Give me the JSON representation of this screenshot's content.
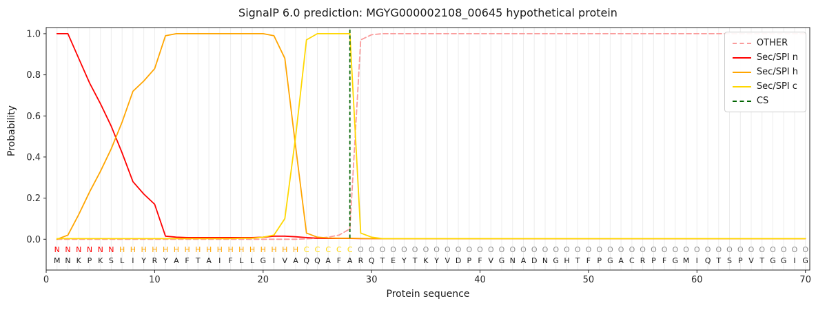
{
  "chart_data": {
    "type": "line",
    "title": "SignalP 6.0 prediction: MGYG000002108_00645 hypothetical protein",
    "xlabel": "Protein sequence",
    "ylabel": "Probability",
    "xlim": [
      0,
      70.4
    ],
    "ylim": [
      -0.15,
      1.03
    ],
    "xticks": [
      0,
      10,
      20,
      30,
      40,
      50,
      60,
      70
    ],
    "yticks": [
      0.0,
      0.2,
      0.4,
      0.6,
      0.8,
      1.0
    ],
    "grid": "vertical line at each residue position",
    "legend_position": "upper right",
    "x_start": 1,
    "sequence": "MNKPKSLIYRYAFTAIFLLGIVAQQAFARQTEYTKYVDPFVGNADNGHTFPGACRPFGMIQTSPVTGGIG",
    "region_labels": "NNNNNNHHHHHHHHHHHHHHHHHCCCCCOOOOOOOOOOOOOOOOOOOOOOOOOOOOOOOOOOOOOOOOOO",
    "cs_position": 28,
    "region_colors": {
      "N": "#ff0000",
      "H": "#ffa500",
      "C": "#ffd700",
      "O": "#8a8a8a"
    },
    "colors": {
      "grid": "#ececec",
      "frame": "#262626",
      "sequence_text": "#1a1a1a"
    },
    "series": [
      {
        "name": "OTHER",
        "color": "#fa9b9b",
        "dash": true,
        "values": [
          0,
          0,
          0,
          0,
          0,
          0,
          0,
          0,
          0,
          0,
          0,
          0,
          0,
          0,
          0,
          0,
          0,
          0,
          0,
          0,
          0,
          0,
          0,
          0.002,
          0.005,
          0.01,
          0.02,
          0.05,
          0.97,
          0.995,
          1,
          1,
          1,
          1,
          1,
          1,
          1,
          1,
          1,
          1,
          1,
          1,
          1,
          1,
          1,
          1,
          1,
          1,
          1,
          1,
          1,
          1,
          1,
          1,
          1,
          1,
          1,
          1,
          1,
          1,
          1,
          1,
          1,
          1,
          1,
          1,
          1,
          1,
          1,
          1
        ]
      },
      {
        "name": "Sec/SPI n",
        "color": "#ff0000",
        "dash": false,
        "values": [
          1,
          1,
          0.88,
          0.76,
          0.66,
          0.55,
          0.42,
          0.28,
          0.22,
          0.17,
          0.015,
          0.01,
          0.008,
          0.008,
          0.008,
          0.008,
          0.008,
          0.008,
          0.008,
          0.01,
          0.015,
          0.015,
          0.012,
          0.008,
          0.005,
          0.004,
          0.004,
          0.004,
          0.003,
          0.003,
          0.003,
          0.003,
          0.003,
          0.003,
          0.003,
          0.003,
          0.003,
          0.003,
          0.003,
          0.003,
          0.003,
          0.003,
          0.003,
          0.003,
          0.003,
          0.003,
          0.003,
          0.003,
          0.003,
          0.003,
          0.003,
          0.003,
          0.003,
          0.003,
          0.003,
          0.003,
          0.003,
          0.003,
          0.003,
          0.003,
          0.003,
          0.003,
          0.003,
          0.003,
          0.003,
          0.003,
          0.003,
          0.003,
          0.003,
          0.003
        ]
      },
      {
        "name": "Sec/SPI h",
        "color": "#ffa500",
        "dash": false,
        "values": [
          0,
          0.02,
          0.12,
          0.23,
          0.33,
          0.44,
          0.57,
          0.72,
          0.77,
          0.83,
          0.99,
          1,
          1,
          1,
          1,
          1,
          1,
          1,
          1,
          1,
          0.99,
          0.88,
          0.45,
          0.03,
          0.01,
          0.006,
          0.005,
          0.005,
          0.004,
          0.003,
          0.003,
          0.003,
          0.003,
          0.003,
          0.003,
          0.003,
          0.003,
          0.003,
          0.003,
          0.003,
          0.003,
          0.003,
          0.003,
          0.003,
          0.003,
          0.003,
          0.003,
          0.003,
          0.003,
          0.003,
          0.003,
          0.003,
          0.003,
          0.003,
          0.003,
          0.003,
          0.003,
          0.003,
          0.003,
          0.003,
          0.003,
          0.003,
          0.003,
          0.003,
          0.003,
          0.003,
          0.003,
          0.003,
          0.003,
          0.003
        ]
      },
      {
        "name": "Sec/SPI c",
        "color": "#ffd700",
        "dash": false,
        "values": [
          0.003,
          0.003,
          0.003,
          0.003,
          0.003,
          0.003,
          0.003,
          0.003,
          0.003,
          0.003,
          0.003,
          0.003,
          0.003,
          0.003,
          0.003,
          0.003,
          0.003,
          0.005,
          0.005,
          0.01,
          0.02,
          0.1,
          0.5,
          0.97,
          1,
          1,
          1,
          1,
          0.03,
          0.01,
          0.003,
          0.003,
          0.003,
          0.003,
          0.003,
          0.003,
          0.003,
          0.003,
          0.003,
          0.003,
          0.003,
          0.003,
          0.003,
          0.003,
          0.003,
          0.003,
          0.003,
          0.003,
          0.003,
          0.003,
          0.003,
          0.003,
          0.003,
          0.003,
          0.003,
          0.003,
          0.003,
          0.003,
          0.003,
          0.003,
          0.003,
          0.003,
          0.003,
          0.003,
          0.003,
          0.003,
          0.003,
          0.003,
          0.003,
          0.003
        ]
      },
      {
        "name": "CS",
        "color": "#006400",
        "dash": true,
        "vline": 28
      }
    ]
  }
}
